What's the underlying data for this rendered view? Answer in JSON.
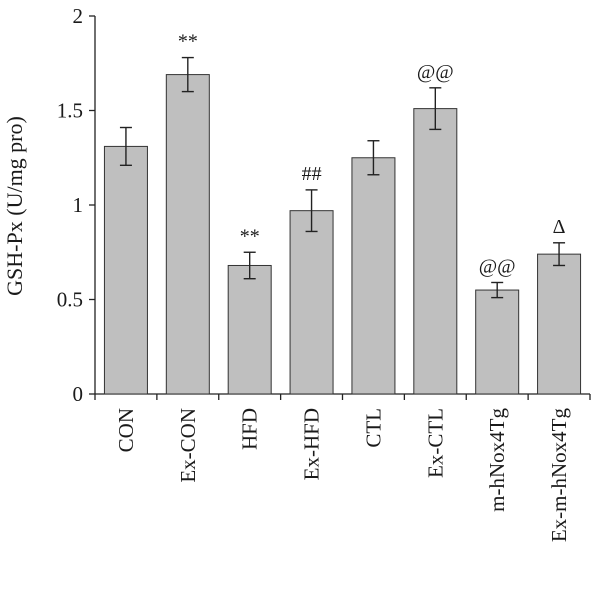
{
  "chart_data": {
    "type": "bar",
    "categories": [
      "CON",
      "Ex-CON",
      "HFD",
      "Ex-HFD",
      "CTL",
      "Ex-CTL",
      "m-hNox4Tg",
      "Ex-m-hNox4Tg"
    ],
    "values": [
      1.31,
      1.69,
      0.68,
      0.97,
      1.25,
      1.51,
      0.55,
      0.74
    ],
    "errors": [
      0.1,
      0.09,
      0.07,
      0.11,
      0.09,
      0.11,
      0.04,
      0.06
    ],
    "annotations": [
      "",
      "**",
      "**",
      "##",
      "",
      "@@",
      "@@",
      "Δ"
    ],
    "ylabel": "GSH-Px (U/mg pro)",
    "ylim": [
      0,
      2
    ],
    "yticks": [
      0,
      0.5,
      1,
      1.5,
      2
    ],
    "ytick_labels": [
      "0",
      "0.5",
      "1",
      "1.5",
      "2"
    ],
    "grid": false,
    "colors": {
      "bar": "#bfbfbf",
      "edge": "#333333",
      "axis": "#222222"
    }
  }
}
